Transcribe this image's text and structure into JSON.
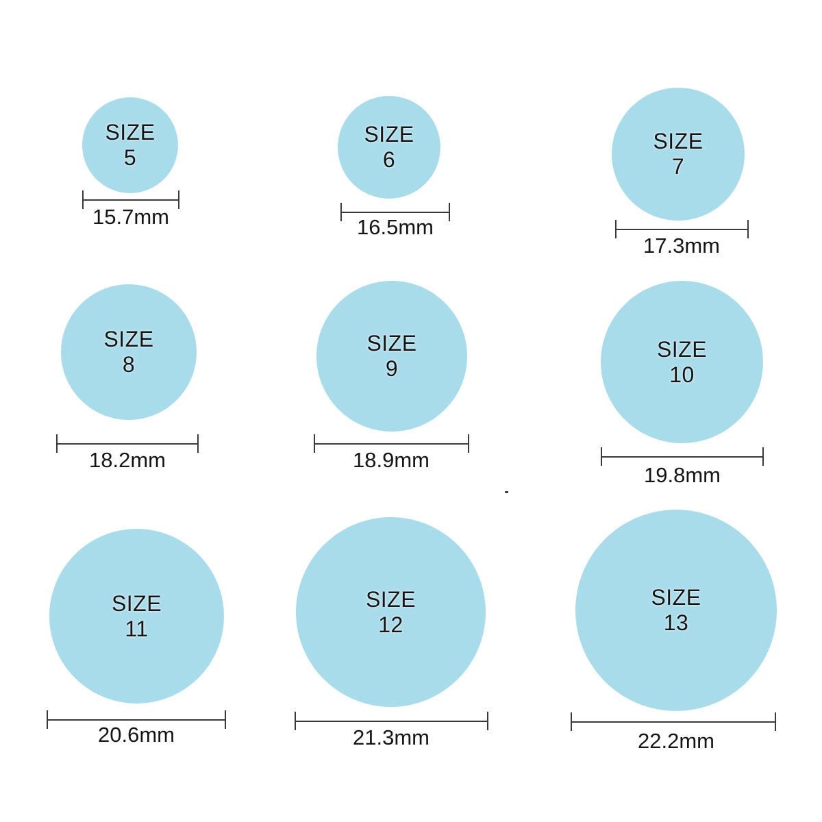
{
  "colors": {
    "circle_fill": "#A9DCEB",
    "label_text": "#151515",
    "measure_line": "#3a3a3a"
  },
  "rings": [
    {
      "size_word": "SIZE",
      "size_number": "5",
      "diameter_label": "15.7mm",
      "diameter_mm": 15.7
    },
    {
      "size_word": "SIZE",
      "size_number": "6",
      "diameter_label": "16.5mm",
      "diameter_mm": 16.5
    },
    {
      "size_word": "SIZE",
      "size_number": "7",
      "diameter_label": "17.3mm",
      "diameter_mm": 17.3
    },
    {
      "size_word": "SIZE",
      "size_number": "8",
      "diameter_label": "18.2mm",
      "diameter_mm": 18.2
    },
    {
      "size_word": "SIZE",
      "size_number": "9",
      "diameter_label": "18.9mm",
      "diameter_mm": 18.9
    },
    {
      "size_word": "SIZE",
      "size_number": "10",
      "diameter_label": "19.8mm",
      "diameter_mm": 19.8
    },
    {
      "size_word": "SIZE",
      "size_number": "11",
      "diameter_label": "20.6mm",
      "diameter_mm": 20.6
    },
    {
      "size_word": "SIZE",
      "size_number": "12",
      "diameter_label": "21.3mm",
      "diameter_mm": 21.3
    },
    {
      "size_word": "SIZE",
      "size_number": "13",
      "diameter_label": "22.2mm",
      "diameter_mm": 22.2
    }
  ]
}
